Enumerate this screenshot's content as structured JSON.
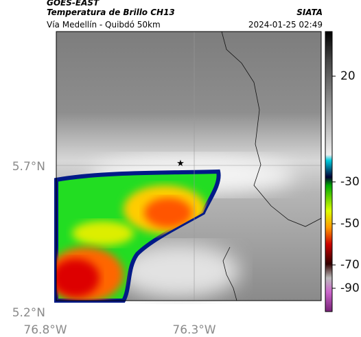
{
  "header": {
    "source": "GOES-EAST",
    "title": "Temperatura de Brillo CH13",
    "agency": "SIATA",
    "subtitle": "Vía Medellín - Quibdó 50km",
    "timestamp": "2024-01-25 02:49"
  },
  "map": {
    "y_labels": [
      "5.7°N",
      "5.2°N"
    ],
    "x_labels": [
      "76.8°W",
      "76.3°W"
    ]
  },
  "colorbar": {
    "ticks": [
      20,
      -30,
      -50,
      -70,
      -90
    ]
  }
}
